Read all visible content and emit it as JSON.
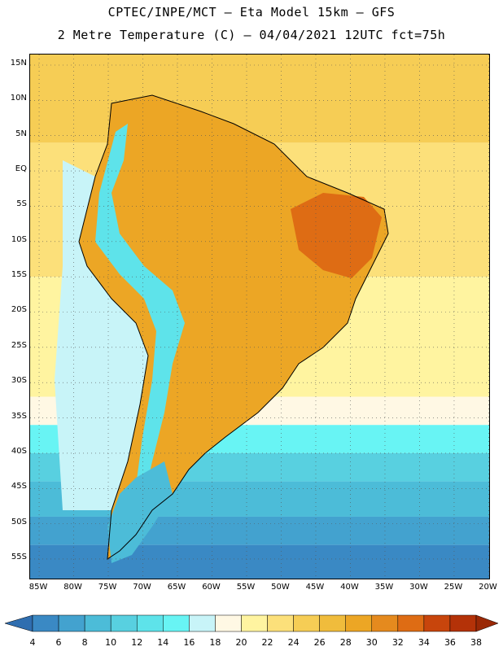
{
  "header": {
    "line1": "CPTEC/INPE/MCT –  Eta Model 15km – GFS",
    "line2": "2 Metre Temperature (C) – 04/04/2021 12UTC fct=75h"
  },
  "axes": {
    "lat_labels": [
      "15N",
      "10N",
      "5N",
      "EQ",
      "5S",
      "10S",
      "15S",
      "20S",
      "25S",
      "30S",
      "35S",
      "40S",
      "45S",
      "50S",
      "55S"
    ],
    "lat_values": [
      15,
      10,
      5,
      0,
      -5,
      -10,
      -15,
      -20,
      -25,
      -30,
      -35,
      -40,
      -45,
      -50,
      -55
    ],
    "lon_labels": [
      "85W",
      "80W",
      "75W",
      "70W",
      "65W",
      "60W",
      "55W",
      "50W",
      "45W",
      "40W",
      "35W",
      "30W",
      "25W",
      "20W"
    ],
    "lon_values": [
      -85,
      -80,
      -75,
      -70,
      -65,
      -60,
      -55,
      -50,
      -45,
      -40,
      -35,
      -30,
      -25,
      -20
    ],
    "lat_range": [
      -58,
      16.5
    ],
    "lon_range": [
      -86.3,
      -19.7
    ]
  },
  "legend": {
    "unit": "C",
    "ticks": [
      "4",
      "6",
      "8",
      "10",
      "12",
      "14",
      "16",
      "18",
      "20",
      "22",
      "24",
      "26",
      "28",
      "30",
      "32",
      "34",
      "36",
      "38"
    ],
    "colors": [
      "#2f6eb0",
      "#3a89c4",
      "#43a2cf",
      "#4cbcd8",
      "#58d0e0",
      "#5ee3ea",
      "#68f4f4",
      "#c8f4f8",
      "#fff8e4",
      "#fff4a0",
      "#fce07a",
      "#f6cd55",
      "#f0bc3c",
      "#eca625",
      "#e58a1e",
      "#de6c14",
      "#c8450c",
      "#b43208",
      "#9a2805"
    ]
  },
  "map": {
    "ocean_bands": [
      {
        "lat": 16.5,
        "value": 26,
        "color": "#f6cd55"
      },
      {
        "lat": 4,
        "value": 24,
        "color": "#fce07a"
      },
      {
        "lat": -15,
        "value": 22,
        "color": "#fff4a0"
      },
      {
        "lat": -32,
        "value": 20,
        "color": "#fff8e4"
      },
      {
        "lat": -36,
        "value": 16,
        "color": "#68f4f4"
      },
      {
        "lat": -40,
        "value": 14,
        "color": "#58d0e0"
      },
      {
        "lat": -44,
        "value": 12,
        "color": "#4cbcd8"
      },
      {
        "lat": -49,
        "value": 10,
        "color": "#43a2cf"
      },
      {
        "lat": -53,
        "value": 8,
        "color": "#3a89c4"
      }
    ],
    "pacific_coast_value": 18,
    "pacific_coast_color": "#c8f4f8",
    "continent_color": "#eca625",
    "hot_region_color": "#de6c14",
    "andes_color": "#5ee3ea",
    "patagonia_color": "#4cbcd8"
  }
}
